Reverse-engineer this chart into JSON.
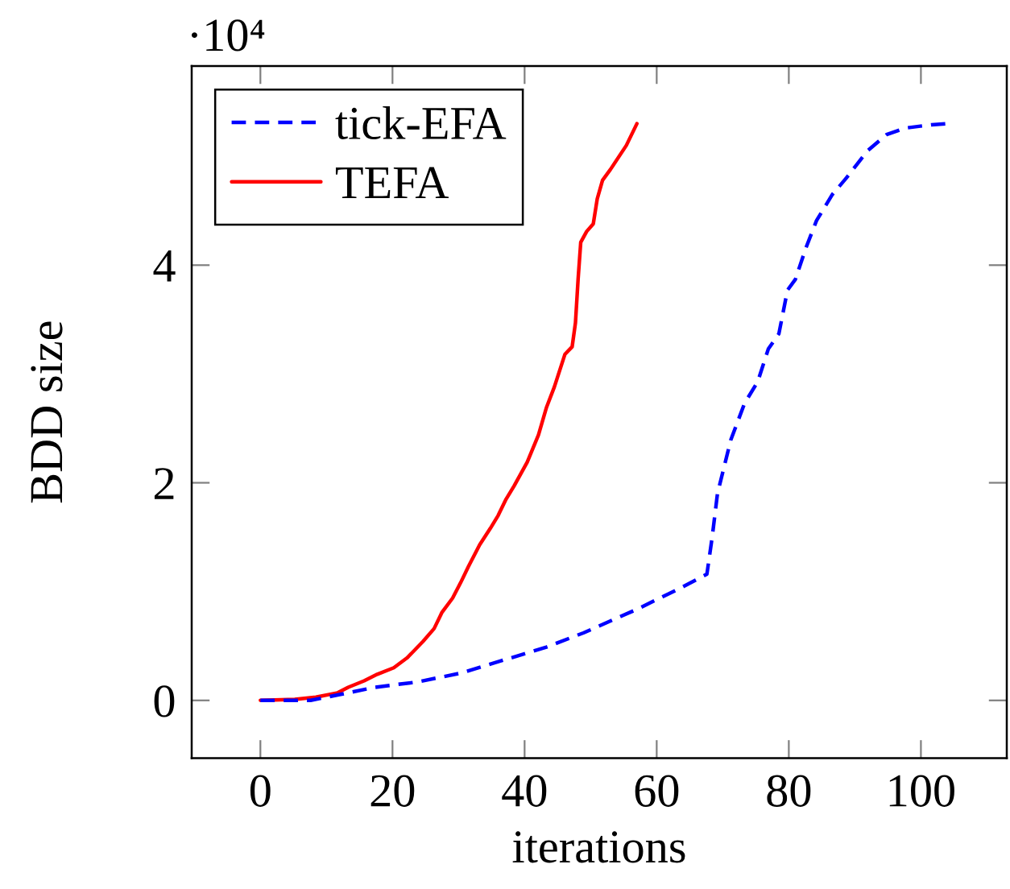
{
  "chart_data": {
    "type": "line",
    "xlabel": "iterations",
    "ylabel": "BDD size",
    "annotations": [
      "·10⁴"
    ],
    "xlim": [
      -10.4,
      113
    ],
    "xticks": [
      0,
      20,
      40,
      60,
      80,
      100
    ],
    "ylim": [
      -0.53,
      5.83
    ],
    "yticks": [
      0,
      2,
      4
    ],
    "legend": "top left",
    "grid": false,
    "marker": "none",
    "series": [
      {
        "name": "tick-EFA",
        "color": "#0000ff",
        "line_style": "dashed",
        "x": [
          0,
          7.6,
          11.7,
          17.3,
          23.8,
          30.3,
          36.8,
          43.3,
          48.9,
          57.1,
          63.5,
          67.6,
          68.4,
          69.2,
          71.2,
          73.3,
          75.3,
          76.9,
          78.5,
          79.8,
          81,
          82.6,
          84.2,
          86.6,
          88.7,
          91.9,
          94.8,
          97.6,
          101.6,
          104
        ],
        "values": [
          0,
          0,
          0.05,
          0.12,
          0.17,
          0.25,
          0.37,
          0.49,
          0.62,
          0.84,
          1.03,
          1.16,
          1.5,
          1.9,
          2.39,
          2.73,
          2.93,
          3.23,
          3.37,
          3.77,
          3.87,
          4.16,
          4.41,
          4.65,
          4.8,
          5.05,
          5.2,
          5.26,
          5.29,
          5.3
        ]
      },
      {
        "name": "TEFA",
        "color": "#ff0000",
        "line_style": "solid",
        "x": [
          0,
          5.2,
          8.4,
          11.7,
          13.3,
          15.7,
          17.7,
          20.2,
          22.2,
          24.6,
          26.3,
          27.5,
          29.1,
          30.3,
          31.5,
          33.2,
          34.8,
          36,
          37.2,
          38.4,
          40.4,
          42.1,
          43.3,
          44.5,
          46.1,
          47.2,
          47.7,
          48.1,
          48.5,
          49.4,
          50.4,
          51,
          51.8,
          53,
          55.4,
          57
        ],
        "values": [
          0,
          0.01,
          0.03,
          0.07,
          0.12,
          0.18,
          0.24,
          0.3,
          0.39,
          0.54,
          0.66,
          0.81,
          0.94,
          1.08,
          1.23,
          1.43,
          1.58,
          1.7,
          1.85,
          1.97,
          2.19,
          2.44,
          2.69,
          2.88,
          3.18,
          3.25,
          3.47,
          3.87,
          4.21,
          4.31,
          4.38,
          4.61,
          4.78,
          4.88,
          5.1,
          5.3
        ]
      }
    ]
  }
}
